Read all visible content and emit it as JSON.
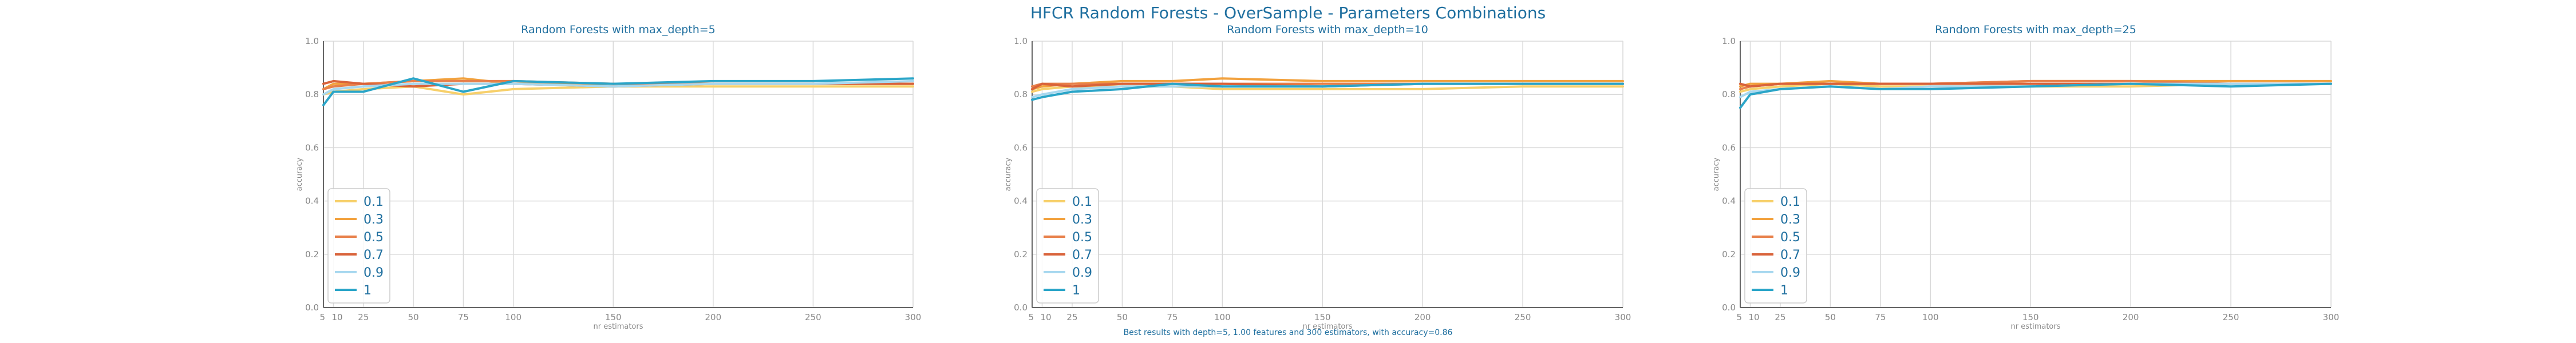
{
  "title": "HFCR Random Forests - OverSample - Parameters Combinations",
  "footnote": "Best results with depth=5, 1.00 features and 300 estimators, with accuracy=0.86",
  "chart_data": [
    {
      "type": "line",
      "title": "Random Forests with max_depth=5",
      "xlabel": "nr estimators",
      "ylabel": "accuracy",
      "ylim": [
        0,
        1
      ],
      "xlim": [
        5,
        300
      ],
      "xticks": [
        5,
        10,
        25,
        50,
        75,
        100,
        150,
        200,
        250,
        300
      ],
      "yticks": [
        0.0,
        0.2,
        0.4,
        0.6,
        0.8,
        1.0
      ],
      "grid": true,
      "legend_position": "lower-left",
      "x": [
        5,
        10,
        25,
        50,
        75,
        100,
        150,
        200,
        250,
        300
      ],
      "series": [
        {
          "name": "0.1",
          "color": "#f7d06b",
          "values": [
            0.8,
            0.81,
            0.82,
            0.83,
            0.8,
            0.82,
            0.83,
            0.83,
            0.83,
            0.83
          ]
        },
        {
          "name": "0.3",
          "color": "#f2a13d",
          "values": [
            0.82,
            0.84,
            0.84,
            0.85,
            0.86,
            0.84,
            0.84,
            0.84,
            0.84,
            0.84
          ]
        },
        {
          "name": "0.5",
          "color": "#e8804a",
          "values": [
            0.82,
            0.83,
            0.84,
            0.85,
            0.85,
            0.85,
            0.84,
            0.84,
            0.84,
            0.84
          ]
        },
        {
          "name": "0.7",
          "color": "#d9633a",
          "values": [
            0.84,
            0.85,
            0.84,
            0.83,
            0.84,
            0.84,
            0.83,
            0.84,
            0.84,
            0.84
          ]
        },
        {
          "name": "0.9",
          "color": "#a8d8ef",
          "values": [
            0.8,
            0.82,
            0.83,
            0.84,
            0.84,
            0.84,
            0.83,
            0.84,
            0.84,
            0.85
          ]
        },
        {
          "name": "1",
          "color": "#2aa5c8",
          "values": [
            0.76,
            0.81,
            0.81,
            0.86,
            0.81,
            0.85,
            0.84,
            0.85,
            0.85,
            0.86
          ]
        }
      ]
    },
    {
      "type": "line",
      "title": "Random Forests with max_depth=10",
      "xlabel": "nr estimators",
      "ylabel": "accuracy",
      "ylim": [
        0,
        1
      ],
      "xlim": [
        5,
        300
      ],
      "xticks": [
        5,
        10,
        25,
        50,
        75,
        100,
        150,
        200,
        250,
        300
      ],
      "yticks": [
        0.0,
        0.2,
        0.4,
        0.6,
        0.8,
        1.0
      ],
      "grid": true,
      "legend_position": "lower-left",
      "x": [
        5,
        10,
        25,
        50,
        75,
        100,
        150,
        200,
        250,
        300
      ],
      "series": [
        {
          "name": "0.1",
          "color": "#f7d06b",
          "values": [
            0.81,
            0.82,
            0.83,
            0.83,
            0.83,
            0.82,
            0.82,
            0.82,
            0.83,
            0.83
          ]
        },
        {
          "name": "0.3",
          "color": "#f2a13d",
          "values": [
            0.82,
            0.83,
            0.84,
            0.85,
            0.85,
            0.86,
            0.85,
            0.85,
            0.85,
            0.85
          ]
        },
        {
          "name": "0.5",
          "color": "#e8804a",
          "values": [
            0.83,
            0.84,
            0.84,
            0.84,
            0.84,
            0.84,
            0.84,
            0.84,
            0.84,
            0.84
          ]
        },
        {
          "name": "0.7",
          "color": "#d9633a",
          "values": [
            0.82,
            0.84,
            0.83,
            0.84,
            0.84,
            0.84,
            0.83,
            0.84,
            0.84,
            0.84
          ]
        },
        {
          "name": "0.9",
          "color": "#a8d8ef",
          "values": [
            0.79,
            0.8,
            0.82,
            0.83,
            0.83,
            0.83,
            0.83,
            0.84,
            0.84,
            0.84
          ]
        },
        {
          "name": "1",
          "color": "#2aa5c8",
          "values": [
            0.78,
            0.79,
            0.81,
            0.82,
            0.84,
            0.83,
            0.83,
            0.84,
            0.84,
            0.84
          ]
        }
      ]
    },
    {
      "type": "line",
      "title": "Random Forests with max_depth=25",
      "xlabel": "nr estimators",
      "ylabel": "accuracy",
      "ylim": [
        0,
        1
      ],
      "xlim": [
        5,
        300
      ],
      "xticks": [
        5,
        10,
        25,
        50,
        75,
        100,
        150,
        200,
        250,
        300
      ],
      "yticks": [
        0.0,
        0.2,
        0.4,
        0.6,
        0.8,
        1.0
      ],
      "grid": true,
      "legend_position": "lower-left",
      "x": [
        5,
        10,
        25,
        50,
        75,
        100,
        150,
        200,
        250,
        300
      ],
      "series": [
        {
          "name": "0.1",
          "color": "#f7d06b",
          "values": [
            0.81,
            0.82,
            0.83,
            0.84,
            0.83,
            0.83,
            0.83,
            0.83,
            0.84,
            0.84
          ]
        },
        {
          "name": "0.3",
          "color": "#f2a13d",
          "values": [
            0.83,
            0.84,
            0.84,
            0.85,
            0.84,
            0.84,
            0.85,
            0.85,
            0.85,
            0.85
          ]
        },
        {
          "name": "0.5",
          "color": "#e8804a",
          "values": [
            0.82,
            0.83,
            0.84,
            0.84,
            0.84,
            0.84,
            0.85,
            0.85,
            0.84,
            0.84
          ]
        },
        {
          "name": "0.7",
          "color": "#d9633a",
          "values": [
            0.84,
            0.83,
            0.84,
            0.84,
            0.84,
            0.84,
            0.84,
            0.84,
            0.84,
            0.84
          ]
        },
        {
          "name": "0.9",
          "color": "#a8d8ef",
          "values": [
            0.79,
            0.81,
            0.82,
            0.83,
            0.82,
            0.83,
            0.83,
            0.84,
            0.84,
            0.84
          ]
        },
        {
          "name": "1",
          "color": "#2aa5c8",
          "values": [
            0.75,
            0.8,
            0.82,
            0.83,
            0.82,
            0.82,
            0.83,
            0.84,
            0.83,
            0.84
          ]
        }
      ]
    }
  ]
}
